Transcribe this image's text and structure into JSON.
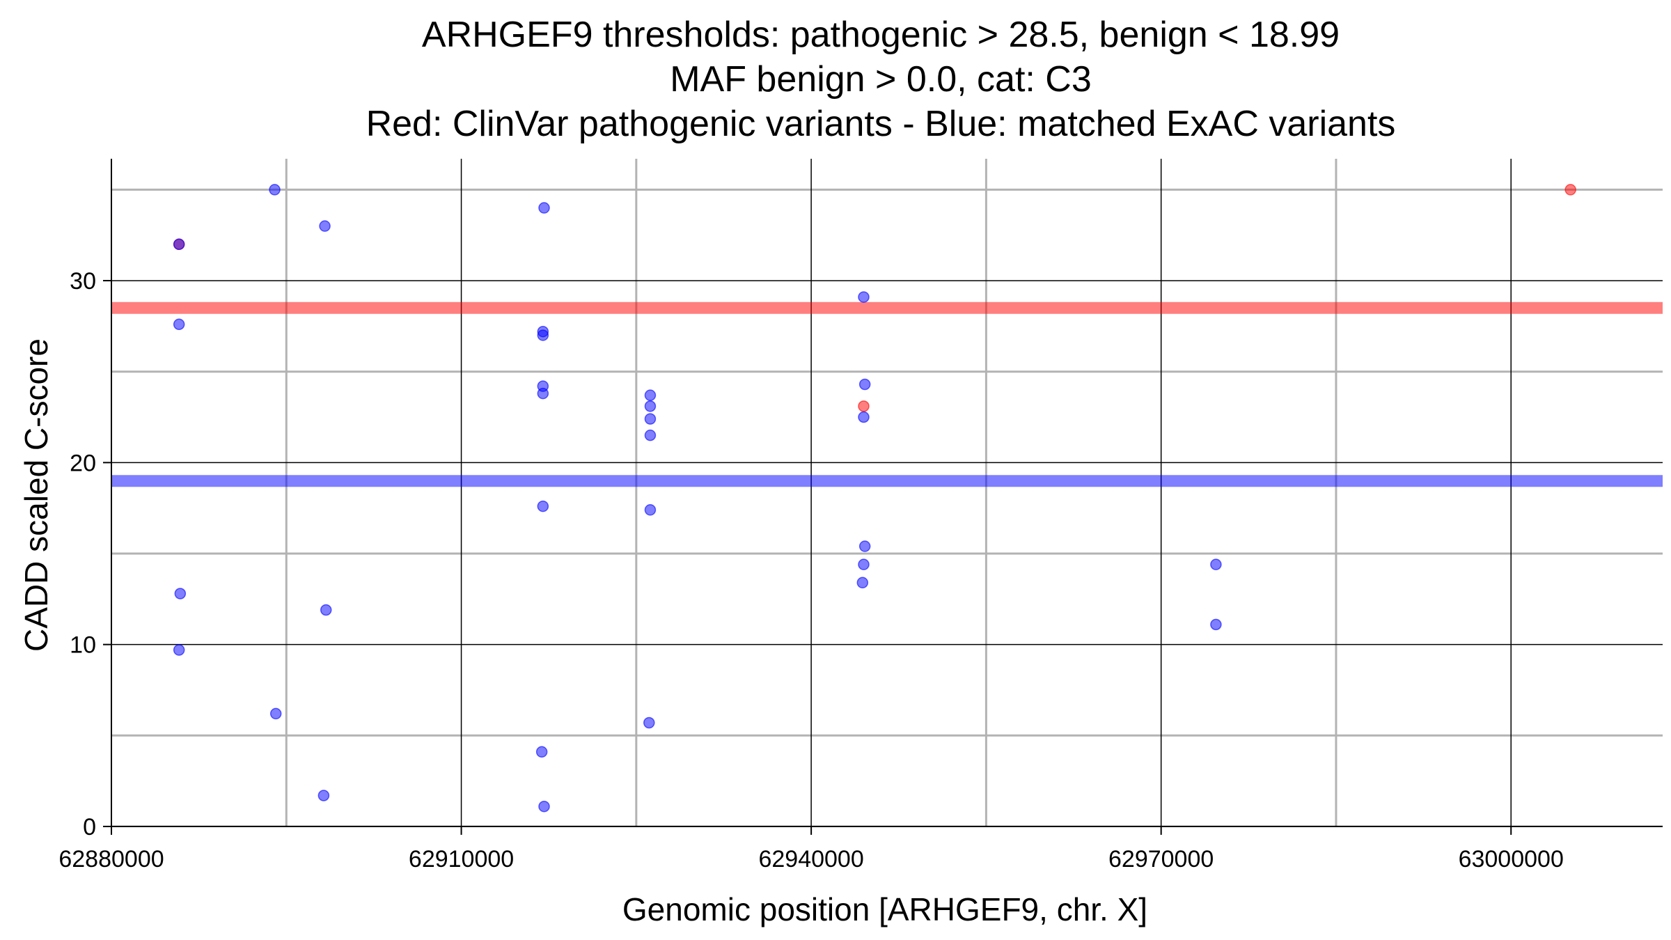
{
  "chart_data": {
    "type": "scatter",
    "title_lines": [
      "ARHGEF9 thresholds: pathogenic > 28.5, benign < 18.99",
      "MAF benign > 0.0, cat: C3",
      "Red: ClinVar pathogenic variants - Blue: matched ExAC variants"
    ],
    "xlabel": "Genomic position [ARHGEF9, chr. X]",
    "ylabel": "CADD scaled C-score",
    "xlim": [
      62880000,
      63013000
    ],
    "ylim": [
      -0.5,
      36.7
    ],
    "x_ticks": [
      62880000,
      62910000,
      62940000,
      62970000,
      63000000
    ],
    "y_ticks": [
      0,
      10,
      20,
      30
    ],
    "x_minor_grid": [
      62895000,
      62925000,
      62955000,
      62985000
    ],
    "y_minor_grid": [
      5,
      15,
      25,
      35
    ],
    "grid": true,
    "colors": {
      "pathogenic": "#ff0000",
      "benign": "#0000ff",
      "major_grid": "#000000",
      "minor_grid": "#b3b3b3"
    },
    "thresholds": [
      {
        "name": "pathogenic",
        "value": 28.5,
        "color": "#ff0000"
      },
      {
        "name": "benign",
        "value": 18.99,
        "color": "#0000ff"
      }
    ],
    "series": [
      {
        "color": "#ff0000",
        "points": [
          {
            "x": 62885800,
            "y": 32.0
          },
          {
            "x": 62944500,
            "y": 23.1
          },
          {
            "x": 63005100,
            "y": 35.0
          }
        ]
      },
      {
        "color": "#0000ff",
        "points": [
          {
            "x": 62885800,
            "y": 32.0
          },
          {
            "x": 62885800,
            "y": 27.6
          },
          {
            "x": 62885900,
            "y": 12.8
          },
          {
            "x": 62885800,
            "y": 9.7
          },
          {
            "x": 62894000,
            "y": 35.0
          },
          {
            "x": 62894100,
            "y": 6.2
          },
          {
            "x": 62898300,
            "y": 33.0
          },
          {
            "x": 62898400,
            "y": 11.9
          },
          {
            "x": 62898200,
            "y": 1.7
          },
          {
            "x": 62917100,
            "y": 34.0
          },
          {
            "x": 62917000,
            "y": 27.2
          },
          {
            "x": 62917000,
            "y": 27.0
          },
          {
            "x": 62917000,
            "y": 24.2
          },
          {
            "x": 62917000,
            "y": 23.8
          },
          {
            "x": 62917000,
            "y": 17.6
          },
          {
            "x": 62916900,
            "y": 4.1
          },
          {
            "x": 62917100,
            "y": 1.1
          },
          {
            "x": 62926200,
            "y": 23.7
          },
          {
            "x": 62926200,
            "y": 23.1
          },
          {
            "x": 62926200,
            "y": 22.4
          },
          {
            "x": 62926200,
            "y": 21.5
          },
          {
            "x": 62926200,
            "y": 17.4
          },
          {
            "x": 62926100,
            "y": 5.7
          },
          {
            "x": 62944500,
            "y": 29.1
          },
          {
            "x": 62944600,
            "y": 24.3
          },
          {
            "x": 62944500,
            "y": 22.5
          },
          {
            "x": 62944600,
            "y": 15.4
          },
          {
            "x": 62944500,
            "y": 14.4
          },
          {
            "x": 62944400,
            "y": 13.4
          },
          {
            "x": 62974700,
            "y": 14.4
          },
          {
            "x": 62974700,
            "y": 11.1
          }
        ]
      }
    ]
  }
}
